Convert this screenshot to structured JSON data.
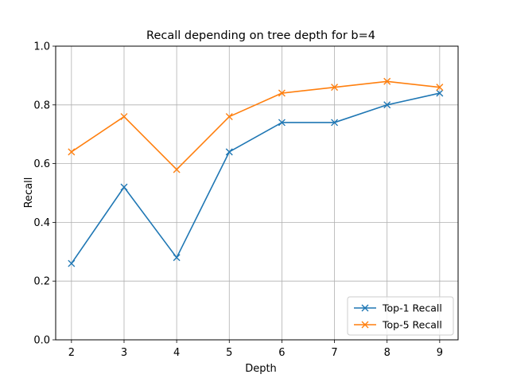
{
  "chart_data": {
    "type": "line",
    "title": "Recall depending on tree depth for b=4",
    "xlabel": "Depth",
    "ylabel": "Recall",
    "x": [
      2,
      3,
      4,
      5,
      6,
      7,
      8,
      9
    ],
    "xticks": [
      "2",
      "3",
      "4",
      "5",
      "6",
      "7",
      "8",
      "9"
    ],
    "yticks": [
      "0.0",
      "0.2",
      "0.4",
      "0.6",
      "0.8",
      "1.0"
    ],
    "xlim": [
      1.7,
      9.35
    ],
    "ylim": [
      0.0,
      1.0
    ],
    "grid": true,
    "legend_position": "lower-right",
    "marker": "x",
    "series": [
      {
        "name": "Top-1 Recall",
        "color": "#1f77b4",
        "values": [
          0.26,
          0.52,
          0.28,
          0.64,
          0.74,
          0.74,
          0.8,
          0.84
        ]
      },
      {
        "name": "Top-5 Recall",
        "color": "#ff7f0e",
        "values": [
          0.64,
          0.76,
          0.58,
          0.76,
          0.84,
          0.86,
          0.88,
          0.86
        ]
      }
    ]
  }
}
